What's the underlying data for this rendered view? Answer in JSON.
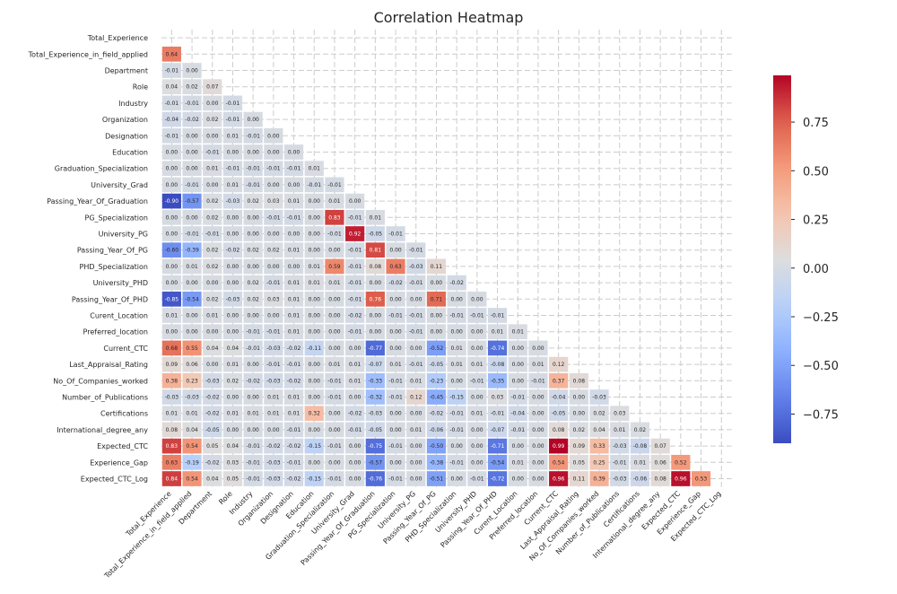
{
  "chart_data": {
    "type": "heatmap",
    "title": "Correlation Heatmap",
    "mask": "upper-triangle",
    "colormap": "coolwarm",
    "value_format": "2 decimals",
    "colorbar": {
      "min": -0.9,
      "max": 0.99,
      "ticks": [
        0.75,
        0.5,
        0.25,
        0.0,
        -0.25,
        -0.5,
        -0.75
      ],
      "tick_labels": [
        "0.75",
        "0.50",
        "0.25",
        "0.00",
        "−0.25",
        "−0.50",
        "−0.75"
      ],
      "placement": "right"
    },
    "labels": [
      "Total_Experience",
      "Total_Experience_in_field_applied",
      "Department",
      "Role",
      "Industry",
      "Organization",
      "Designation",
      "Education",
      "Graduation_Specialization",
      "University_Grad",
      "Passing_Year_Of_Graduation",
      "PG_Specialization",
      "University_PG",
      "Passing_Year_Of_PG",
      "PHD_Specialization",
      "University_PHD",
      "Passing_Year_Of_PHD",
      "Curent_Location",
      "Preferred_location",
      "Current_CTC",
      "Last_Appraisal_Rating",
      "No_Of_Companies_worked",
      "Number_of_Publications",
      "Certifications",
      "International_degree_any",
      "Expected_CTC",
      "Experience_Gap",
      "Expected_CTC_Log"
    ],
    "values": [
      [],
      [
        0.64
      ],
      [
        -0.01,
        0.0
      ],
      [
        0.04,
        0.02,
        0.07
      ],
      [
        -0.01,
        -0.01,
        0.0,
        -0.01
      ],
      [
        -0.04,
        -0.02,
        0.02,
        -0.01,
        0.0
      ],
      [
        -0.01,
        -0.0,
        0.0,
        0.01,
        -0.01,
        -0.0
      ],
      [
        0.0,
        -0.0,
        -0.01,
        -0.0,
        -0.0,
        -0.0,
        0.0
      ],
      [
        -0.0,
        -0.0,
        0.01,
        -0.01,
        -0.01,
        -0.01,
        -0.01,
        0.01
      ],
      [
        -0.0,
        -0.01,
        0.0,
        0.01,
        -0.01,
        0.0,
        0.0,
        -0.01,
        -0.01
      ],
      [
        -0.9,
        -0.57,
        0.02,
        -0.03,
        0.02,
        0.03,
        0.01,
        -0.0,
        0.01,
        0.0
      ],
      [
        -0.0,
        -0.0,
        0.02,
        -0.0,
        -0.0,
        -0.01,
        -0.01,
        0.0,
        0.83,
        -0.01,
        0.01
      ],
      [
        -0.0,
        -0.01,
        -0.01,
        0.0,
        -0.0,
        0.0,
        0.0,
        -0.0,
        -0.01,
        0.92,
        -0.05,
        -0.01
      ],
      [
        -0.6,
        -0.39,
        0.02,
        -0.02,
        0.02,
        0.02,
        0.01,
        -0.0,
        0.0,
        -0.01,
        0.81,
        -0.0,
        -0.01
      ],
      [
        0.0,
        0.01,
        0.02,
        0.0,
        -0.0,
        0.0,
        -0.0,
        0.01,
        0.59,
        -0.01,
        0.08,
        0.63,
        -0.03,
        0.11
      ],
      [
        -0.0,
        -0.0,
        -0.0,
        -0.0,
        0.02,
        -0.01,
        0.01,
        0.01,
        0.01,
        -0.01,
        0.0,
        -0.02,
        -0.01,
        0.0,
        -0.02
      ],
      [
        -0.85,
        -0.54,
        0.02,
        -0.03,
        0.02,
        0.03,
        0.01,
        -0.0,
        -0.0,
        -0.01,
        0.76,
        0.0,
        -0.0,
        0.71,
        -0.0,
        0.0
      ],
      [
        0.01,
        -0.0,
        0.01,
        -0.0,
        -0.0,
        -0.0,
        0.01,
        0.0,
        -0.0,
        -0.02,
        -0.0,
        -0.01,
        -0.01,
        0.0,
        -0.01,
        -0.01,
        -0.01
      ],
      [
        -0.0,
        -0.0,
        -0.0,
        -0.0,
        -0.01,
        -0.01,
        0.01,
        0.0,
        -0.0,
        -0.01,
        0.0,
        -0.0,
        -0.01,
        0.0,
        0.0,
        -0.0,
        0.01,
        0.01
      ],
      [
        0.68,
        0.55,
        0.04,
        0.04,
        -0.01,
        -0.03,
        -0.02,
        -0.11,
        -0.0,
        0.0,
        -0.77,
        -0.0,
        -0.0,
        -0.52,
        0.01,
        -0.0,
        -0.74,
        0.0,
        0.0
      ],
      [
        0.09,
        0.06,
        -0.0,
        0.01,
        -0.0,
        -0.01,
        -0.01,
        -0.0,
        0.01,
        0.01,
        -0.07,
        0.01,
        -0.01,
        -0.05,
        0.01,
        0.01,
        -0.08,
        -0.0,
        0.01,
        0.12
      ],
      [
        0.38,
        0.23,
        -0.03,
        0.02,
        -0.02,
        -0.03,
        -0.02,
        0.0,
        -0.01,
        0.01,
        -0.33,
        -0.01,
        0.01,
        -0.23,
        0.0,
        -0.01,
        -0.35,
        0.0,
        -0.01,
        0.37,
        0.08
      ],
      [
        -0.03,
        -0.03,
        -0.02,
        -0.0,
        -0.0,
        0.01,
        0.01,
        0.0,
        -0.01,
        0.0,
        -0.32,
        -0.01,
        0.12,
        -0.45,
        -0.15,
        0.0,
        0.03,
        -0.01,
        0.0,
        -0.04,
        -0.0,
        -0.03
      ],
      [
        0.01,
        0.01,
        -0.02,
        0.01,
        0.01,
        0.01,
        0.01,
        0.32,
        -0.0,
        -0.02,
        -0.03,
        -0.0,
        -0.0,
        -0.02,
        -0.01,
        0.01,
        -0.01,
        -0.04,
        0.0,
        -0.05,
        -0.0,
        0.02,
        0.03
      ],
      [
        0.08,
        0.04,
        -0.05,
        -0.0,
        0.0,
        -0.0,
        -0.01,
        -0.0,
        0.0,
        -0.01,
        -0.05,
        -0.0,
        0.01,
        -0.06,
        -0.01,
        0.0,
        -0.07,
        -0.01,
        0.0,
        0.08,
        0.02,
        0.04,
        0.01,
        0.02
      ],
      [
        0.83,
        0.54,
        0.05,
        0.04,
        -0.01,
        -0.02,
        -0.02,
        -0.15,
        -0.01,
        0.0,
        -0.75,
        -0.01,
        -0.0,
        -0.5,
        0.0,
        -0.0,
        -0.71,
        0.0,
        0.0,
        0.99,
        0.09,
        0.33,
        -0.03,
        -0.08,
        0.07
      ],
      [
        0.63,
        -0.19,
        -0.02,
        0.03,
        -0.01,
        -0.03,
        -0.01,
        0.0,
        -0.0,
        -0.0,
        -0.57,
        -0.0,
        -0.0,
        -0.38,
        -0.01,
        -0.0,
        -0.54,
        0.01,
        0.0,
        0.54,
        0.05,
        0.25,
        -0.01,
        0.01,
        0.06,
        0.52
      ],
      [
        0.84,
        0.54,
        0.04,
        0.05,
        -0.01,
        -0.03,
        -0.02,
        -0.15,
        -0.01,
        0.0,
        -0.76,
        -0.01,
        -0.0,
        -0.51,
        0.0,
        -0.01,
        -0.72,
        0.0,
        -0.0,
        0.96,
        0.11,
        0.39,
        -0.03,
        -0.06,
        0.08,
        0.96,
        0.53
      ]
    ]
  }
}
